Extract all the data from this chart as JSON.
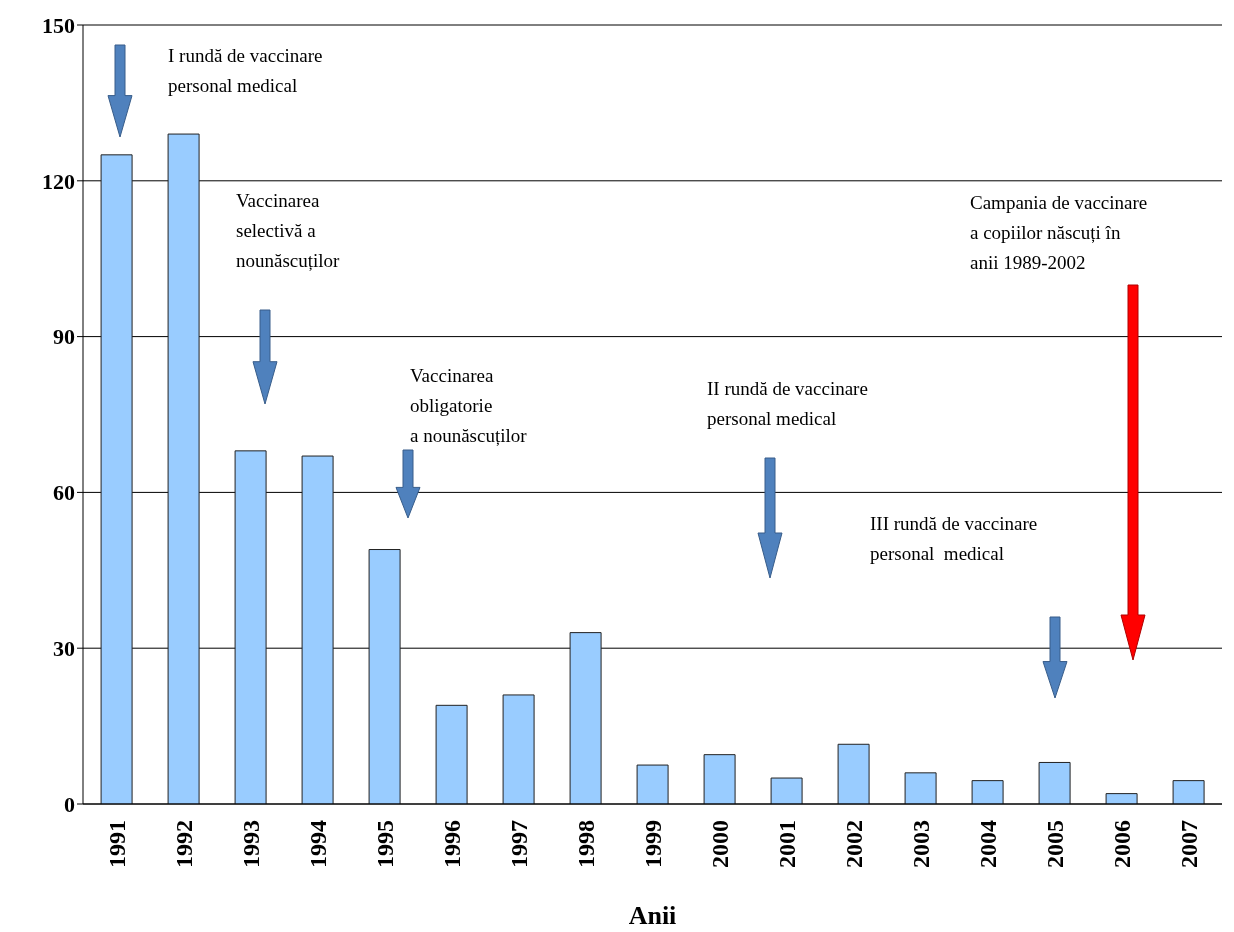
{
  "chart_data": {
    "type": "bar",
    "xlabel": "Anii",
    "categories": [
      "1991",
      "1992",
      "1993",
      "1994",
      "1995",
      "1996",
      "1997",
      "1998",
      "1999",
      "2000",
      "2001",
      "2002",
      "2003",
      "2004",
      "2005",
      "2006",
      "2007"
    ],
    "values": [
      125,
      129,
      68,
      67,
      49,
      19,
      21,
      33,
      7.5,
      9.5,
      5,
      11.5,
      6,
      4.5,
      8,
      2,
      4.5
    ],
    "color": "#99ccff",
    "ylim": [
      0,
      150
    ],
    "yticks": [
      0,
      30,
      60,
      90,
      120,
      150
    ],
    "grid": "y",
    "annotations": [
      "I rundă de vaccinare\npersonal medical",
      "Vaccinarea\nselectivă a\nnounăscuților",
      "Vaccinarea\nobligatorie\na nounăscuților",
      "II rundă de vaccinare\npersonal medical",
      "III rundă de vaccinare\npersonal  medical",
      "Campania de vaccinare\na copiilor născuți în\nanii 1989-2002"
    ]
  }
}
